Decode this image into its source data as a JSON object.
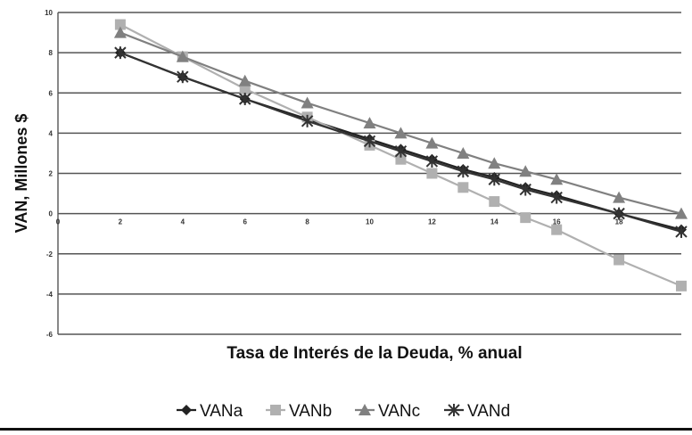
{
  "chart_data": {
    "type": "line",
    "xlabel": "Tasa de Interés de la Deuda, % anual",
    "ylabel": "VAN, Millones $",
    "xlim": [
      0,
      20
    ],
    "ylim": [
      -6,
      10
    ],
    "x_ticks": [
      "0",
      "2",
      "4",
      "6",
      "8",
      "10",
      "12",
      "14",
      "16",
      "18"
    ],
    "y_ticks": [
      "10",
      "8",
      "6",
      "4",
      "2",
      "0",
      "-2",
      "-4",
      "-6"
    ],
    "grid": "horizontal",
    "legend_position": "bottom",
    "x": [
      2,
      4,
      6,
      8,
      10,
      11,
      12,
      13,
      14,
      15,
      16,
      18,
      20
    ],
    "series": [
      {
        "name": "VANa",
        "color": "#222222",
        "marker": "diamond",
        "values": [
          8.0,
          6.8,
          5.7,
          4.7,
          3.7,
          3.2,
          2.7,
          2.2,
          1.8,
          1.3,
          0.9,
          0.0,
          -0.8
        ]
      },
      {
        "name": "VANb",
        "color": "#b0b0b0",
        "marker": "square",
        "values": [
          9.4,
          7.8,
          6.2,
          4.8,
          3.4,
          2.7,
          2.0,
          1.3,
          0.6,
          -0.2,
          -0.8,
          -2.3,
          -3.6
        ]
      },
      {
        "name": "VANc",
        "color": "#808080",
        "marker": "triangle",
        "values": [
          9.0,
          7.8,
          6.6,
          5.5,
          4.5,
          4.0,
          3.5,
          3.0,
          2.5,
          2.1,
          1.7,
          0.8,
          0.0
        ]
      },
      {
        "name": "VANd",
        "color": "#333333",
        "marker": "star",
        "values": [
          8.0,
          6.8,
          5.7,
          4.6,
          3.6,
          3.1,
          2.6,
          2.1,
          1.7,
          1.2,
          0.8,
          0.0,
          -0.9
        ]
      }
    ]
  }
}
